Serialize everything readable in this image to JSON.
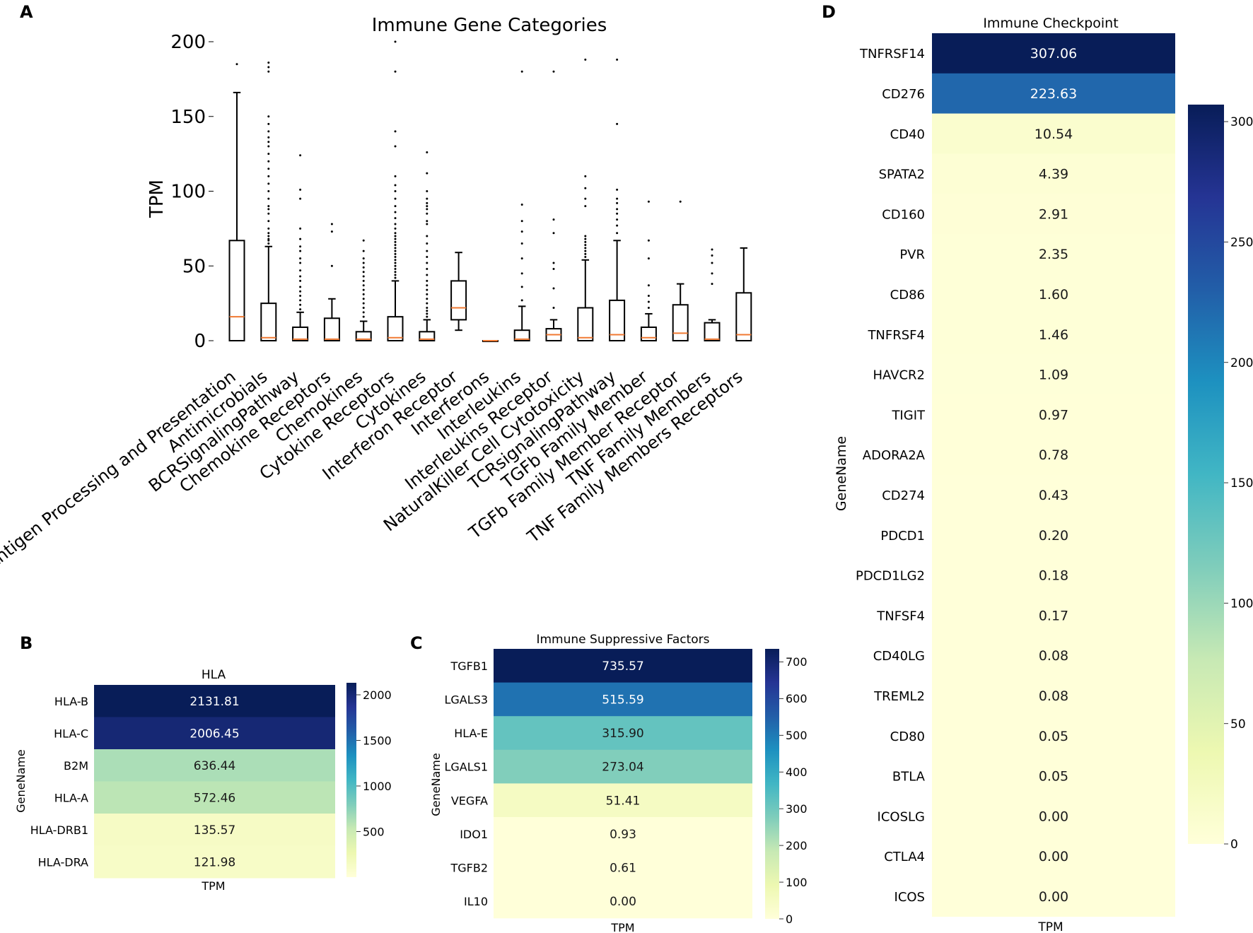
{
  "panels": {
    "a": "A",
    "b": "B",
    "c": "C",
    "d": "D"
  },
  "chart_data": [
    {
      "id": "A",
      "type": "box",
      "title": "Immune Gene Categories",
      "xlabel": "",
      "ylabel": "TPM",
      "ylim": [
        0,
        200
      ],
      "yticks": [
        0,
        50,
        100,
        150,
        200
      ],
      "grid": false,
      "categories": [
        {
          "label": "Antigen Processing and Presentation",
          "q1": 0,
          "median": 16,
          "q3": 67,
          "whislo": 0,
          "whishi": 166,
          "fliers": [
            185
          ]
        },
        {
          "label": "Antimicrobials",
          "q1": 0,
          "median": 2,
          "q3": 25,
          "whislo": 0,
          "whishi": 63,
          "fliers": [
            65,
            67,
            68,
            70,
            72,
            75,
            80,
            85,
            88,
            90,
            95,
            100,
            105,
            110,
            115,
            120,
            125,
            130,
            133,
            136,
            140,
            145,
            150,
            180,
            183,
            186
          ]
        },
        {
          "label": "BCRSignalingPathway",
          "q1": 0,
          "median": 1,
          "q3": 9,
          "whislo": 0,
          "whishi": 19,
          "fliers": [
            21,
            24,
            27,
            30,
            33,
            36,
            40,
            43,
            47,
            52,
            55,
            60,
            63,
            68,
            75,
            95,
            101,
            124
          ]
        },
        {
          "label": "Chemokine Receptors",
          "q1": 0,
          "median": 1,
          "q3": 15,
          "whislo": 0,
          "whishi": 28,
          "fliers": [
            50,
            73,
            78
          ]
        },
        {
          "label": "Chemokines",
          "q1": 0,
          "median": 1,
          "q3": 6,
          "whislo": 0,
          "whishi": 13,
          "fliers": [
            16,
            19,
            22,
            25,
            28,
            31,
            34,
            37,
            40,
            43,
            46,
            49,
            52,
            55,
            60,
            67
          ]
        },
        {
          "label": "Cytokine Receptors",
          "q1": 0,
          "median": 2,
          "q3": 16,
          "whislo": 0,
          "whishi": 40,
          "fliers": [
            42,
            44,
            46,
            48,
            50,
            52,
            54,
            56,
            58,
            60,
            62,
            64,
            66,
            68,
            70,
            72,
            75,
            78,
            82,
            86,
            90,
            95,
            100,
            104,
            110,
            130,
            140,
            180,
            200
          ]
        },
        {
          "label": "Cytokines",
          "q1": 0,
          "median": 1,
          "q3": 6,
          "whislo": 0,
          "whishi": 14,
          "fliers": [
            16,
            18,
            20,
            22,
            25,
            28,
            31,
            34,
            37,
            40,
            44,
            48,
            52,
            56,
            60,
            65,
            70,
            78,
            80,
            85,
            88,
            90,
            92,
            95,
            100,
            112,
            126
          ]
        },
        {
          "label": "Interferon Receptor",
          "q1": 14,
          "median": 22,
          "q3": 40,
          "whislo": 7,
          "whishi": 59,
          "fliers": []
        },
        {
          "label": "Interferons",
          "q1": 0,
          "median": 0,
          "q3": 0,
          "whislo": 0,
          "whishi": 0,
          "fliers": []
        },
        {
          "label": "Interleukins",
          "q1": 0,
          "median": 1,
          "q3": 7,
          "whislo": 0,
          "whishi": 23,
          "fliers": [
            27,
            36,
            45,
            55,
            65,
            73,
            80,
            91,
            180
          ]
        },
        {
          "label": "Interleukins Receptor",
          "q1": 0,
          "median": 4,
          "q3": 8,
          "whislo": 0,
          "whishi": 14,
          "fliers": [
            22,
            35,
            48,
            52,
            72,
            81,
            180
          ]
        },
        {
          "label": "NaturalKiller Cell Cytotoxicity",
          "q1": 0,
          "median": 2,
          "q3": 22,
          "whislo": 0,
          "whishi": 54,
          "fliers": [
            56,
            58,
            60,
            62,
            64,
            66,
            68,
            70,
            90,
            95,
            102,
            110,
            188
          ]
        },
        {
          "label": "TCRsignalingPathway",
          "q1": 0,
          "median": 4,
          "q3": 27,
          "whislo": 0,
          "whishi": 67,
          "fliers": [
            72,
            77,
            81,
            85,
            88,
            92,
            95,
            101,
            145,
            188
          ]
        },
        {
          "label": "TGFb Family Member",
          "q1": 0,
          "median": 2,
          "q3": 9,
          "whislo": 0,
          "whishi": 18,
          "fliers": [
            22,
            26,
            30,
            37,
            55,
            67,
            93
          ]
        },
        {
          "label": "TGFb Family Member Receptor",
          "q1": 0,
          "median": 5,
          "q3": 24,
          "whislo": 0,
          "whishi": 38,
          "fliers": [
            93
          ]
        },
        {
          "label": "TNF Family Members",
          "q1": 0,
          "median": 1,
          "q3": 12,
          "whislo": 0,
          "whishi": 14,
          "fliers": [
            38,
            45,
            52,
            57,
            61
          ]
        },
        {
          "label": "TNF Family Members Receptors",
          "q1": 0,
          "median": 4,
          "q3": 32,
          "whislo": 0,
          "whishi": 62,
          "fliers": []
        }
      ]
    },
    {
      "id": "B",
      "type": "heatmap",
      "title": "HLA",
      "xlabel": "TPM",
      "ylabel": "GeneName",
      "vrange": [
        0,
        2131.81
      ],
      "colorbar_ticks": [
        500,
        1000,
        1500,
        2000
      ],
      "colorbar_labels": [
        "500",
        "1000",
        "1500",
        "2000"
      ],
      "rows": [
        "HLA-B",
        "HLA-C",
        "B2M",
        "HLA-A",
        "HLA-DRB1",
        "HLA-DRA"
      ],
      "values": [
        2131.81,
        2006.45,
        636.44,
        572.46,
        135.57,
        121.98
      ],
      "labels": [
        "2131.81",
        "2006.45",
        "636.44",
        "572.46",
        "135.57",
        "121.98"
      ]
    },
    {
      "id": "C",
      "type": "heatmap",
      "title": "Immune Suppressive Factors",
      "xlabel": "TPM",
      "ylabel": "GeneName",
      "vrange": [
        0,
        735.57
      ],
      "colorbar_ticks": [
        0,
        100,
        200,
        300,
        400,
        500,
        600,
        700
      ],
      "colorbar_labels": [
        "0",
        "100",
        "200",
        "300",
        "400",
        "500",
        "600",
        "700"
      ],
      "rows": [
        "TGFB1",
        "LGALS3",
        "HLA-E",
        "LGALS1",
        "VEGFA",
        "IDO1",
        "TGFB2",
        "IL10"
      ],
      "values": [
        735.57,
        515.59,
        315.9,
        273.04,
        51.41,
        0.93,
        0.61,
        0.0
      ],
      "labels": [
        "735.57",
        "515.59",
        "315.90",
        "273.04",
        "51.41",
        "0.93",
        "0.61",
        "0.00"
      ]
    },
    {
      "id": "D",
      "type": "heatmap",
      "title": "Immune Checkpoint",
      "xlabel": "TPM",
      "ylabel": "GeneName",
      "vrange": [
        0,
        307.06
      ],
      "colorbar_ticks": [
        0,
        50,
        100,
        150,
        200,
        250,
        300
      ],
      "colorbar_labels": [
        "0",
        "50",
        "100",
        "150",
        "200",
        "250",
        "300"
      ],
      "rows": [
        "TNFRSF14",
        "CD276",
        "CD40",
        "SPATA2",
        "CD160",
        "PVR",
        "CD86",
        "TNFRSF4",
        "HAVCR2",
        "TIGIT",
        "ADORA2A",
        "CD274",
        "PDCD1",
        "PDCD1LG2",
        "TNFSF4",
        "CD40LG",
        "TREML2",
        "CD80",
        "BTLA",
        "ICOSLG",
        "CTLA4",
        "ICOS"
      ],
      "values": [
        307.06,
        223.63,
        10.54,
        4.39,
        2.91,
        2.35,
        1.6,
        1.46,
        1.09,
        0.97,
        0.78,
        0.43,
        0.2,
        0.18,
        0.17,
        0.08,
        0.08,
        0.05,
        0.05,
        0.0,
        0.0,
        0.0
      ],
      "labels": [
        "307.06",
        "223.63",
        "10.54",
        "4.39",
        "2.91",
        "2.35",
        "1.60",
        "1.46",
        "1.09",
        "0.97",
        "0.78",
        "0.43",
        "0.20",
        "0.18",
        "0.17",
        "0.08",
        "0.08",
        "0.05",
        "0.05",
        "0.00",
        "0.00",
        "0.00"
      ]
    }
  ]
}
